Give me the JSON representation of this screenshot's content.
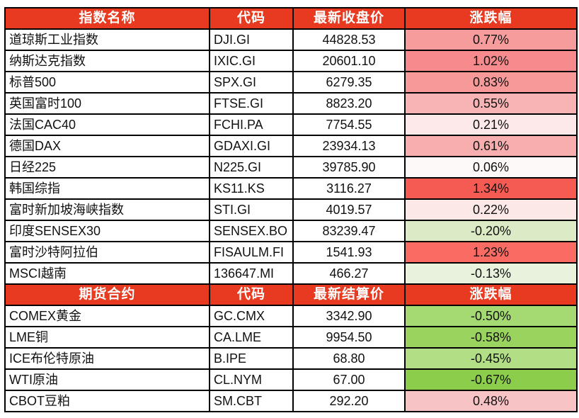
{
  "colors": {
    "header_bg": "#E73A21",
    "header_text": "#FFFFFF",
    "border": "#000000",
    "cell_text": "#111111",
    "gain_strong": "#F55B53",
    "loss_strong": "#8CCD4B"
  },
  "chart_data": [
    {
      "type": "table",
      "columns": [
        "指数名称",
        "代码",
        "最新收盘价",
        "涨跌幅"
      ],
      "rows": [
        {
          "name": "道琼斯工业指数",
          "code": "DJI.GI",
          "value": "44828.53",
          "change": "0.77%",
          "change_bg": "#F79C9D"
        },
        {
          "name": "纳斯达克指数",
          "code": "IXIC.GI",
          "value": "20601.10",
          "change": "1.02%",
          "change_bg": "#F68A8C"
        },
        {
          "name": "标普500",
          "code": "SPX.GI",
          "value": "6279.35",
          "change": "0.83%",
          "change_bg": "#F79899"
        },
        {
          "name": "英国富时100",
          "code": "FTSE.GI",
          "value": "8823.20",
          "change": "0.55%",
          "change_bg": "#F8B4B5"
        },
        {
          "name": "法国CAC40",
          "code": "FCHI.PA",
          "value": "7754.55",
          "change": "0.21%",
          "change_bg": "#FDE9E9"
        },
        {
          "name": "德国DAX",
          "code": "GDAXI.GI",
          "value": "23934.13",
          "change": "0.61%",
          "change_bg": "#F8ADAE"
        },
        {
          "name": "日经225",
          "code": "N225.GI",
          "value": "39785.90",
          "change": "0.06%",
          "change_bg": "#FEF9F9"
        },
        {
          "name": "韩国综指",
          "code": "KS11.KS",
          "value": "3116.27",
          "change": "1.34%",
          "change_bg": "#F55B53"
        },
        {
          "name": "富时新加坡海峡指数",
          "code": "STI.GI",
          "value": "4019.57",
          "change": "0.22%",
          "change_bg": "#FDE8E8"
        },
        {
          "name": "印度SENSEX30",
          "code": "SENSEX.BO",
          "value": "83239.47",
          "change": "-0.20%",
          "change_bg": "#DCEBC6"
        },
        {
          "name": "富时沙特阿拉伯",
          "code": "FISAULM.FI",
          "value": "1541.93",
          "change": "1.23%",
          "change_bg": "#F96B63"
        },
        {
          "name": "MSCI越南",
          "code": "136647.MI",
          "value": "466.27",
          "change": "-0.13%",
          "change_bg": "#E9F2DD"
        }
      ]
    },
    {
      "type": "table",
      "columns": [
        "期货合约",
        "代码",
        "最新结算价",
        "涨跌幅"
      ],
      "rows": [
        {
          "name": "COMEX黄金",
          "code": "GC.CMX",
          "value": "3342.90",
          "change": "-0.50%",
          "change_bg": "#A5D972"
        },
        {
          "name": "LME铜",
          "code": "CA.LME",
          "value": "9954.50",
          "change": "-0.58%",
          "change_bg": "#9AD35E"
        },
        {
          "name": "ICE布伦特原油",
          "code": "B.IPE",
          "value": "68.80",
          "change": "-0.45%",
          "change_bg": "#B2DE86"
        },
        {
          "name": "WTI原油",
          "code": "CL.NYM",
          "value": "67.00",
          "change": "-0.67%",
          "change_bg": "#8CCD4B"
        },
        {
          "name": "CBOT豆粕",
          "code": "SM.CBT",
          "value": "292.20",
          "change": "0.48%",
          "change_bg": "#F8C3C4"
        }
      ]
    }
  ]
}
